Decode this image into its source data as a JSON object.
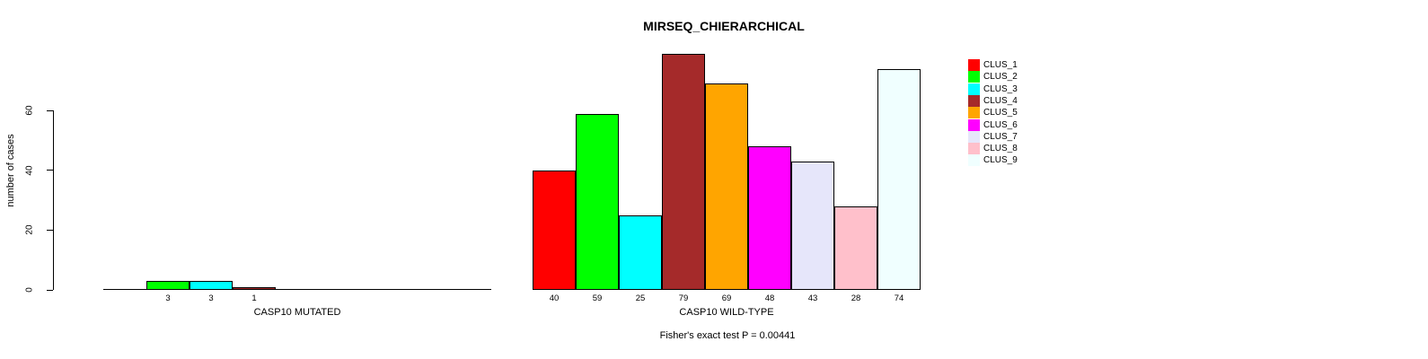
{
  "title": "MIRSEQ_CHIERARCHICAL",
  "footer_note": "Fisher's exact test P = 0.00441",
  "chart_data": {
    "type": "bar",
    "title": "MIRSEQ_CHIERARCHICAL",
    "ylabel": "number of cases",
    "xlabel": "",
    "categories": [
      "CASP10 MUTATED",
      "CASP10 WILD-TYPE"
    ],
    "yticks": [
      0,
      20,
      40,
      60
    ],
    "ylim": [
      0,
      80
    ],
    "grid": false,
    "bar_borders": "#000000",
    "value_labels_shown_for_nonzero_bars": true,
    "legend_position": "top-right",
    "series": [
      {
        "name": "CLUS_1",
        "color": "#FF0000",
        "values": [
          0,
          40
        ]
      },
      {
        "name": "CLUS_2",
        "color": "#00FF00",
        "values": [
          3,
          59
        ]
      },
      {
        "name": "CLUS_3",
        "color": "#00FFFF",
        "values": [
          3,
          25
        ]
      },
      {
        "name": "CLUS_4",
        "color": "#A52A2A",
        "values": [
          1,
          79
        ]
      },
      {
        "name": "CLUS_5",
        "color": "#FFA500",
        "values": [
          0,
          69
        ]
      },
      {
        "name": "CLUS_6",
        "color": "#FF00FF",
        "values": [
          0,
          48
        ]
      },
      {
        "name": "CLUS_7",
        "color": "#E6E6FA",
        "values": [
          0,
          43
        ]
      },
      {
        "name": "CLUS_8",
        "color": "#FFC0CB",
        "values": [
          0,
          28
        ]
      },
      {
        "name": "CLUS_9",
        "color": "#F0FFFF",
        "values": [
          0,
          74
        ]
      }
    ],
    "annotation": "Fisher's exact test P = 0.00441"
  }
}
